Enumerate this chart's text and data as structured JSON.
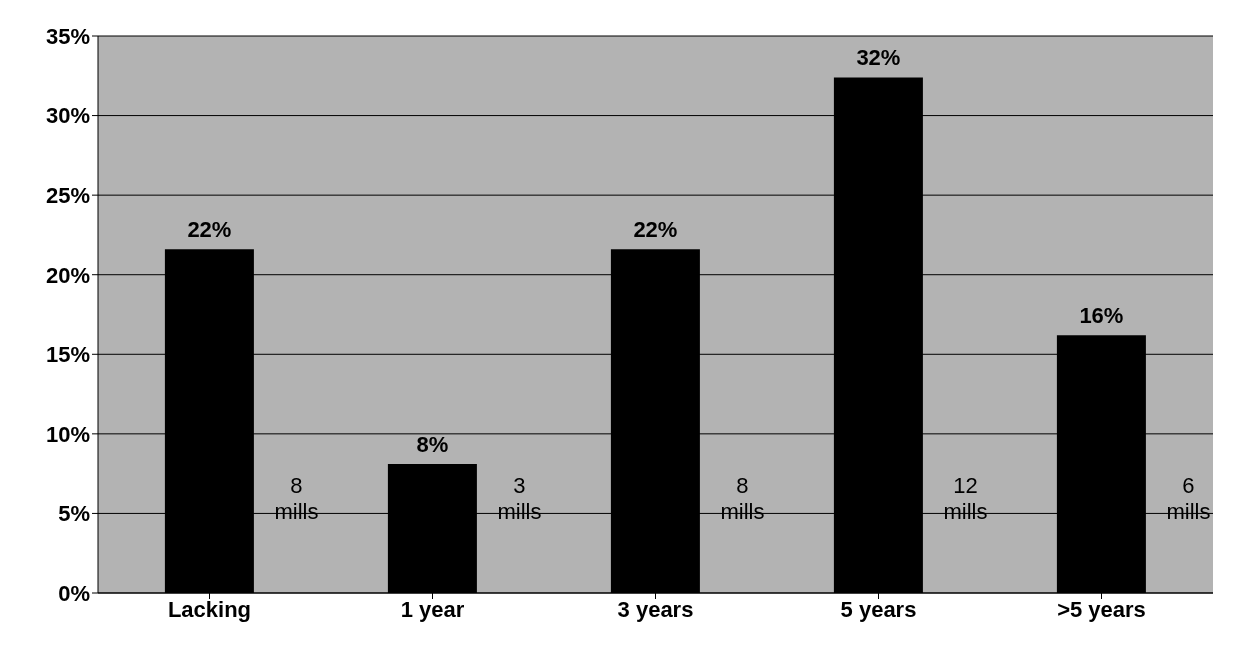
{
  "chart_data": {
    "type": "bar",
    "categories": [
      "Lacking",
      "1 year",
      "3 years",
      "5 years",
      ">5 years"
    ],
    "values": [
      21.6,
      8.1,
      21.6,
      32.4,
      16.2
    ],
    "value_labels": [
      "22%",
      "8%",
      "22%",
      "32%",
      "16%"
    ],
    "color": "#000000",
    "ylim": [
      0,
      35
    ],
    "yticks": [
      {
        "value": 0,
        "label": "0%"
      },
      {
        "value": 5,
        "label": "5%"
      },
      {
        "value": 10,
        "label": "10%"
      },
      {
        "value": 15,
        "label": "15%"
      },
      {
        "value": 20,
        "label": "20%"
      },
      {
        "value": 25,
        "label": "25%"
      },
      {
        "value": 30,
        "label": "30%"
      },
      {
        "value": 35,
        "label": "35%"
      }
    ],
    "grid": "y",
    "annotations": [
      "8\nmills",
      "3\nmills",
      "8\nmills",
      "12\nmills",
      "6\nmills"
    ]
  }
}
